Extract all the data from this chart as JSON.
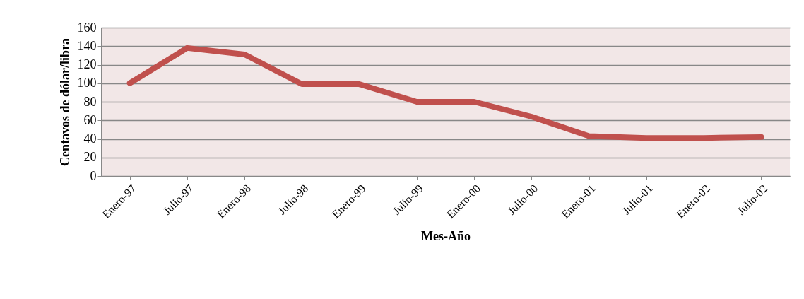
{
  "chart_data": {
    "type": "line",
    "xlabel": "Mes-Año",
    "ylabel": "Centavos de dólar/libra",
    "categories": [
      "Enero-97",
      "Julio-97",
      "Enero-98",
      "Julio-98",
      "Enero-99",
      "Julio-99",
      "Enero-00",
      "Julio-00",
      "Enero-01",
      "Julio-01",
      "Enero-02",
      "Julio-02"
    ],
    "series": [
      {
        "color": "#c0504d",
        "values": [
          100,
          138,
          131,
          99,
          99,
          80,
          80,
          64,
          43,
          41,
          41,
          42
        ]
      }
    ],
    "ylim": [
      0,
      160
    ],
    "yticks": [
      0,
      20,
      40,
      60,
      80,
      100,
      120,
      140,
      160
    ],
    "grid": "y",
    "marker": "none",
    "line_style": "solid"
  }
}
